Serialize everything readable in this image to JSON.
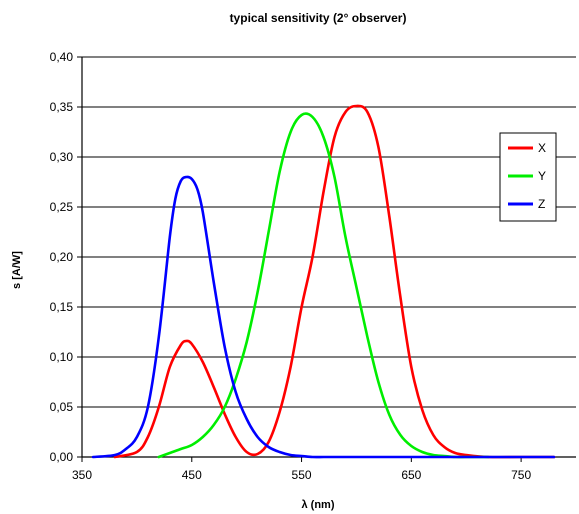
{
  "chart_data": {
    "type": "line",
    "title": "typical sensitivity (2° observer)",
    "xlabel": "λ (nm)",
    "ylabel": "s [A/W]",
    "xlim": [
      350,
      800
    ],
    "ylim": [
      0,
      0.4
    ],
    "x_ticks": [
      "350",
      "450",
      "550",
      "650",
      "750"
    ],
    "y_ticks": [
      "0,00",
      "0,05",
      "0,10",
      "0,15",
      "0,20",
      "0,25",
      "0,30",
      "0,35",
      "0,40"
    ],
    "grid": "horizontal",
    "legend_position": "right",
    "series": [
      {
        "name": "X",
        "color": "#ff0000",
        "x": [
          380,
          400,
          410,
          420,
          430,
          440,
          445,
          450,
          460,
          470,
          480,
          490,
          500,
          510,
          520,
          530,
          540,
          550,
          560,
          570,
          580,
          590,
          600,
          610,
          620,
          630,
          640,
          650,
          660,
          670,
          680,
          690,
          700,
          720,
          750,
          780
        ],
        "y": [
          0.0,
          0.005,
          0.02,
          0.05,
          0.09,
          0.112,
          0.116,
          0.113,
          0.095,
          0.07,
          0.043,
          0.02,
          0.005,
          0.003,
          0.015,
          0.045,
          0.09,
          0.15,
          0.2,
          0.265,
          0.32,
          0.345,
          0.351,
          0.345,
          0.31,
          0.24,
          0.16,
          0.09,
          0.047,
          0.022,
          0.01,
          0.004,
          0.002,
          0.0,
          0.0,
          0.0
        ]
      },
      {
        "name": "Y",
        "color": "#00ee00",
        "x": [
          420,
          430,
          440,
          450,
          460,
          470,
          480,
          490,
          500,
          510,
          520,
          530,
          540,
          550,
          560,
          570,
          580,
          590,
          600,
          610,
          620,
          630,
          640,
          650,
          660,
          670,
          680,
          690,
          700,
          720
        ],
        "y": [
          0.0,
          0.004,
          0.008,
          0.012,
          0.02,
          0.032,
          0.05,
          0.078,
          0.115,
          0.165,
          0.225,
          0.285,
          0.325,
          0.342,
          0.34,
          0.32,
          0.28,
          0.22,
          0.17,
          0.12,
          0.075,
          0.042,
          0.022,
          0.011,
          0.005,
          0.002,
          0.001,
          0.0,
          0.0,
          0.0
        ]
      },
      {
        "name": "Z",
        "color": "#0000ff",
        "x": [
          360,
          380,
          390,
          400,
          410,
          420,
          430,
          435,
          440,
          445,
          450,
          455,
          460,
          470,
          480,
          490,
          500,
          510,
          520,
          530,
          540,
          550,
          560,
          570,
          580,
          600,
          650,
          700,
          750,
          780
        ],
        "y": [
          0.0,
          0.002,
          0.008,
          0.02,
          0.05,
          0.12,
          0.22,
          0.258,
          0.276,
          0.28,
          0.278,
          0.268,
          0.245,
          0.175,
          0.11,
          0.065,
          0.038,
          0.02,
          0.01,
          0.005,
          0.002,
          0.001,
          0.0,
          0.0,
          0.0,
          0.0,
          0.0,
          0.0,
          0.0,
          0.0
        ]
      }
    ]
  }
}
